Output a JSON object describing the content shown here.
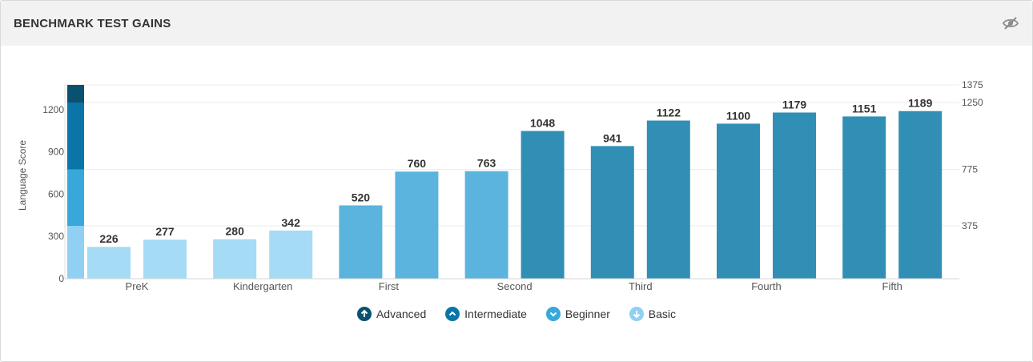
{
  "header": {
    "title": "BENCHMARK TEST GAINS",
    "hide_icon": "eye-slash-icon"
  },
  "legend": [
    {
      "label": "Advanced",
      "color": "#0a5170",
      "icon": "arrow-up-icon"
    },
    {
      "label": "Intermediate",
      "color": "#0b75a8",
      "icon": "chevron-up-icon"
    },
    {
      "label": "Beginner",
      "color": "#38a8da",
      "icon": "chevron-down-icon"
    },
    {
      "label": "Basic",
      "color": "#8fd0f3",
      "icon": "arrow-down-icon"
    }
  ],
  "chart_data": {
    "type": "bar",
    "ylabel": "Language Score",
    "ylim": [
      0,
      1375
    ],
    "y_ticks": [
      0,
      300,
      600,
      900,
      1200
    ],
    "y2_ticks": [
      375,
      775,
      1250,
      1375
    ],
    "grid": true,
    "categories": [
      "PreK",
      "Kindergarten",
      "First",
      "Second",
      "Third",
      "Fourth",
      "Fifth"
    ],
    "series": [
      {
        "values": [
          226,
          280,
          520,
          763,
          941,
          1100,
          1151
        ]
      },
      {
        "values": [
          277,
          342,
          760,
          1048,
          1122,
          1179,
          1189
        ]
      }
    ],
    "bar_colors": [
      [
        "#a6dbf6",
        "#a6dbf6"
      ],
      [
        "#a6dbf6",
        "#a6dbf6"
      ],
      [
        "#5ab4de",
        "#5ab4de"
      ],
      [
        "#5ab4de",
        "#318fb5"
      ],
      [
        "#318fb5",
        "#318fb5"
      ],
      [
        "#318fb5",
        "#318fb5"
      ],
      [
        "#318fb5",
        "#318fb5"
      ]
    ],
    "level_bands": [
      {
        "name": "Basic",
        "from": 0,
        "to": 375,
        "color": "#8fd0f3"
      },
      {
        "name": "Beginner",
        "from": 375,
        "to": 775,
        "color": "#38a8da"
      },
      {
        "name": "Intermediate",
        "from": 775,
        "to": 1250,
        "color": "#0b75a8"
      },
      {
        "name": "Advanced",
        "from": 1250,
        "to": 1375,
        "color": "#0a5170"
      }
    ]
  }
}
